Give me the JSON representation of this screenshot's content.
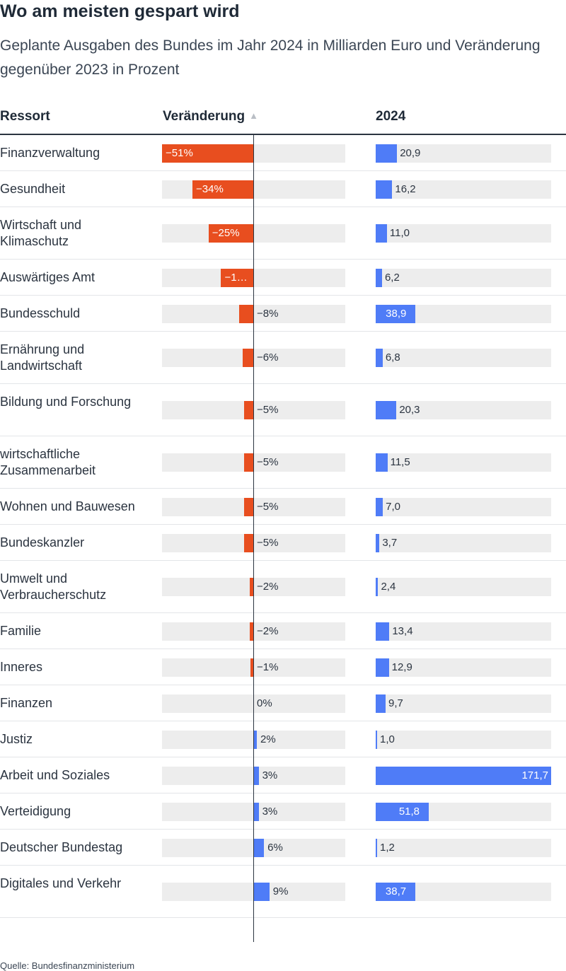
{
  "title": "Wo am meisten gespart wird",
  "subtitle": "Geplante Ausgaben des Bundes im Jahr 2024 in Milliarden Euro und Veränderung gegenüber 2023 in Prozent",
  "header": {
    "ressort": "Ressort",
    "change": "Veränderung",
    "sort_icon": "▲",
    "year": "2024"
  },
  "source": "Quelle: Bundesfinanzministerium",
  "colors": {
    "negative": "#e84e1f",
    "positive": "#4f7cf7",
    "track": "#ededed",
    "text": "#2b3440"
  },
  "chart_data": {
    "type": "table",
    "columns": [
      "Ressort",
      "Veränderung",
      "2024"
    ],
    "change_range_pct": [
      -51,
      9
    ],
    "spend_range": [
      0,
      171.7
    ],
    "rows": [
      {
        "ressort": "Finanzverwaltung",
        "change": -51,
        "change_label": "−51%",
        "spend": 20.9,
        "spend_label": "20,9"
      },
      {
        "ressort": "Gesundheit",
        "change": -34,
        "change_label": "−34%",
        "spend": 16.2,
        "spend_label": "16,2"
      },
      {
        "ressort": "Wirtschaft und Klimaschutz",
        "change": -25,
        "change_label": "−25%",
        "spend": 11.0,
        "spend_label": "11,0"
      },
      {
        "ressort": "Auswärtiges Amt",
        "change": -18,
        "change_label": "−1…",
        "spend": 6.2,
        "spend_label": "6,2"
      },
      {
        "ressort": "Bundesschuld",
        "change": -8,
        "change_label": "−8%",
        "spend": 38.9,
        "spend_label": "38,9"
      },
      {
        "ressort": "Ernährung und Landwirtschaft",
        "change": -6,
        "change_label": "−6%",
        "spend": 6.8,
        "spend_label": "6,8"
      },
      {
        "ressort": "Bildung und Forschung",
        "change": -5,
        "change_label": "−5%",
        "spend": 20.3,
        "spend_label": "20,3"
      },
      {
        "ressort": "wirtschaftliche Zusammenarbeit",
        "change": -5,
        "change_label": "−5%",
        "spend": 11.5,
        "spend_label": "11,5"
      },
      {
        "ressort": "Wohnen und Bauwesen",
        "change": -5,
        "change_label": "−5%",
        "spend": 7.0,
        "spend_label": "7,0"
      },
      {
        "ressort": "Bundeskanzler",
        "change": -5,
        "change_label": "−5%",
        "spend": 3.7,
        "spend_label": "3,7"
      },
      {
        "ressort": "Umwelt und Verbraucherschutz",
        "change": -2,
        "change_label": "−2%",
        "spend": 2.4,
        "spend_label": "2,4"
      },
      {
        "ressort": "Familie",
        "change": -2,
        "change_label": "−2%",
        "spend": 13.4,
        "spend_label": "13,4"
      },
      {
        "ressort": "Inneres",
        "change": -1,
        "change_label": "−1%",
        "spend": 12.9,
        "spend_label": "12,9"
      },
      {
        "ressort": "Finanzen",
        "change": 0,
        "change_label": "0%",
        "spend": 9.7,
        "spend_label": "9,7"
      },
      {
        "ressort": "Justiz",
        "change": 2,
        "change_label": "2%",
        "spend": 1.0,
        "spend_label": "1,0"
      },
      {
        "ressort": "Arbeit und Soziales",
        "change": 3,
        "change_label": "3%",
        "spend": 171.7,
        "spend_label": "171,7"
      },
      {
        "ressort": "Verteidigung",
        "change": 3,
        "change_label": "3%",
        "spend": 51.8,
        "spend_label": "51,8"
      },
      {
        "ressort": "Deutscher Bundestag",
        "change": 6,
        "change_label": "6%",
        "spend": 1.2,
        "spend_label": "1,2"
      },
      {
        "ressort": "Digitales und Verkehr",
        "change": 9,
        "change_label": "9%",
        "spend": 38.7,
        "spend_label": "38,7"
      }
    ]
  }
}
